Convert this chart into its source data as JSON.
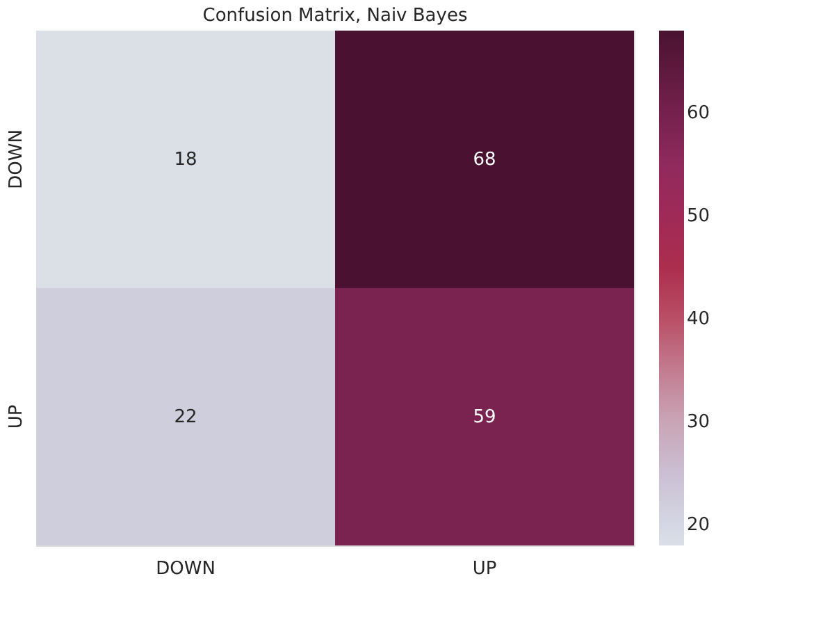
{
  "chart_data": {
    "type": "heatmap",
    "title": "Confusion Matrix, Naiv Bayes",
    "categories": [
      "DOWN",
      "UP"
    ],
    "y_categories": [
      "DOWN",
      "UP"
    ],
    "cells": [
      [
        18,
        68
      ],
      [
        22,
        59
      ]
    ],
    "data_labels": true,
    "clim": [
      18,
      68
    ],
    "cticks": [
      20,
      30,
      40,
      50,
      60
    ],
    "colors": [
      "#dbe0e7",
      "#c9a3b2",
      "#b0304a",
      "#8e2a5e",
      "#4a1230"
    ],
    "grid": false
  }
}
